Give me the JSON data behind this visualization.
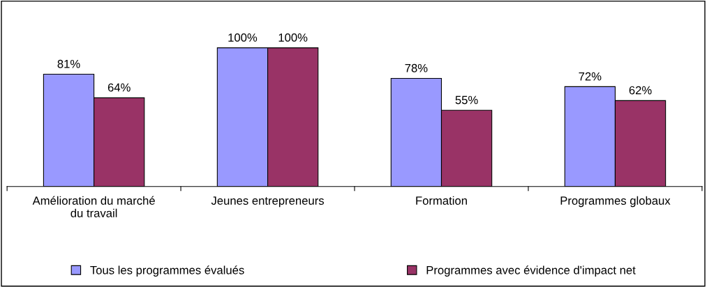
{
  "chart_data": {
    "type": "bar",
    "categories": [
      "Amélioration du marché\ndu travail",
      "Jeunes entrepreneurs",
      "Formation",
      "Programmes globaux"
    ],
    "series": [
      {
        "name": "Tous les programmes évalués",
        "color": "#9999ff",
        "values": [
          81,
          100,
          78,
          72
        ],
        "value_labels": [
          "81%",
          "100%",
          "78%",
          "72%"
        ]
      },
      {
        "name": "Programmes avec évidence d'impact net",
        "color": "#993366",
        "values": [
          64,
          100,
          55,
          62
        ],
        "value_labels": [
          "64%",
          "100%",
          "55%",
          "62%"
        ]
      }
    ],
    "legend": "bottom",
    "grid": false
  }
}
